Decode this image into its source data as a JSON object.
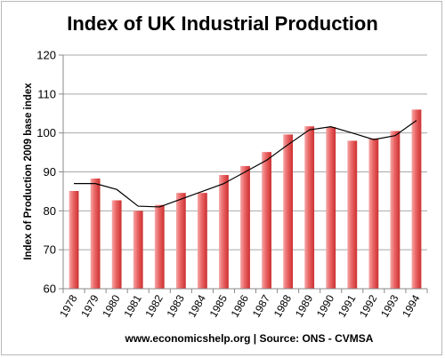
{
  "chart_data": {
    "type": "bar",
    "title": "Index of UK Industrial Production",
    "ylabel": "Index of Production 2009 base index",
    "xlabel": "",
    "ylim": [
      60,
      120
    ],
    "yticks": [
      60,
      70,
      80,
      90,
      100,
      110,
      120
    ],
    "grid": true,
    "categories": [
      "1978",
      "1979",
      "1980",
      "1981",
      "1982",
      "1983",
      "1984",
      "1985",
      "1986",
      "1987",
      "1988",
      "1989",
      "1990",
      "1991",
      "1992",
      "1993",
      "1994"
    ],
    "series": [
      {
        "type": "bar",
        "values": [
          85.1,
          88.3,
          82.7,
          80.0,
          81.5,
          84.6,
          84.6,
          89.2,
          91.5,
          95.1,
          99.6,
          101.7,
          101.5,
          98.0,
          98.6,
          100.5,
          106.0
        ],
        "color": "#e04848"
      },
      {
        "type": "line",
        "values": [
          87.0,
          87.0,
          85.5,
          81.2,
          81.0,
          83.0,
          85.0,
          87.0,
          90.0,
          93.0,
          97.0,
          100.8,
          101.6,
          100.0,
          98.3,
          99.3,
          103.2
        ],
        "color": "#000000"
      }
    ],
    "source": "www.economicshelp.org | Source: ONS  - CVMSA"
  }
}
